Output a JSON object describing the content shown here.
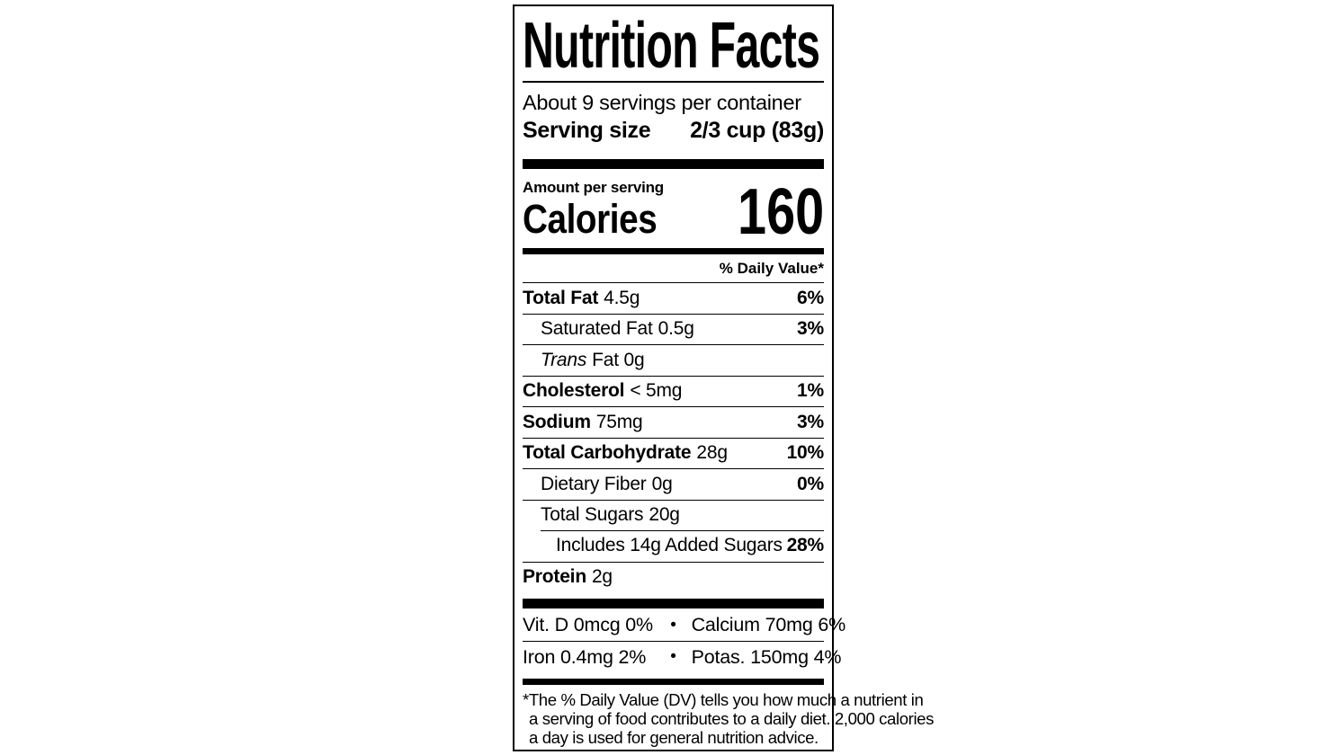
{
  "label": {
    "title": "Nutrition Facts",
    "servings_per_container": "About 9 servings per container",
    "serving_size_label": "Serving size",
    "serving_size_value": "2/3 cup (83g)",
    "amount_per_serving_label": "Amount per serving",
    "calories_label": "Calories",
    "calories_value": "160",
    "daily_value_header": "% Daily Value*",
    "nutrients": [
      {
        "name": "Total Fat",
        "amount": "4.5g",
        "dv": "6%"
      },
      {
        "name": "Saturated Fat",
        "amount": "0.5g",
        "dv": "3%"
      },
      {
        "name_italic": "Trans",
        "name_rest": "Fat 0g",
        "dv": ""
      },
      {
        "name": "Cholesterol",
        "amount": "< 5mg",
        "dv": "1%"
      },
      {
        "name": "Sodium",
        "amount": "75mg",
        "dv": "3%"
      },
      {
        "name": "Total Carbohydrate",
        "amount": "28g",
        "dv": "10%"
      },
      {
        "name": "Dietary Fiber",
        "amount": "0g",
        "dv": "0%"
      },
      {
        "name": "Total Sugars",
        "amount": "20g",
        "dv": ""
      },
      {
        "name": "Includes 14g Added Sugars",
        "amount": "",
        "dv": "28%"
      },
      {
        "name": "Protein",
        "amount": "2g",
        "dv": ""
      }
    ],
    "micronutrients": [
      {
        "left": "Vit. D 0mcg 0%",
        "bullet": "•",
        "right": "Calcium 70mg 6%"
      },
      {
        "left": "Iron 0.4mg 2%",
        "bullet": "•",
        "right": "Potas. 150mg 4%"
      }
    ],
    "footnote_lines": [
      "*The % Daily Value (DV) tells you how much a nutrient in",
      "a serving of food contributes to a daily diet. 2,000 calories",
      "a day is used for general nutrition advice."
    ]
  }
}
